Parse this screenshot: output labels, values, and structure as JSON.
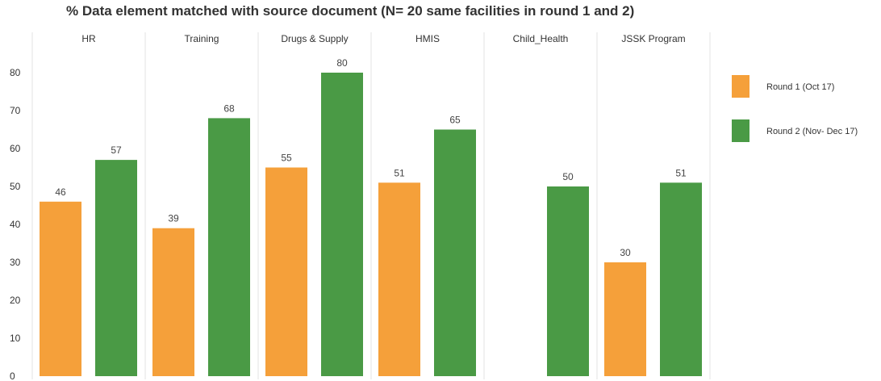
{
  "chart_data": {
    "type": "bar",
    "title": "% Data element matched with source document (N= 20 same facilities in round 1 and 2)",
    "xlabel": "",
    "ylabel": "",
    "categories": [
      "HR",
      "Training",
      "Drugs & Supply",
      "HMIS",
      "Child_Health",
      "JSSK Program"
    ],
    "series": [
      {
        "name": "Round 1 (Oct 17)",
        "color": "#f5a03a",
        "values": [
          46,
          39,
          55,
          51,
          null,
          30
        ]
      },
      {
        "name": "Round 2 (Nov- Dec 17)",
        "color": "#4a9a45",
        "values": [
          57,
          68,
          80,
          65,
          50,
          51
        ]
      }
    ],
    "ylim": [
      0,
      80
    ],
    "yticks": [
      0,
      10,
      20,
      30,
      40,
      50,
      60,
      70,
      80
    ],
    "grid": false,
    "legend_position": "right"
  }
}
